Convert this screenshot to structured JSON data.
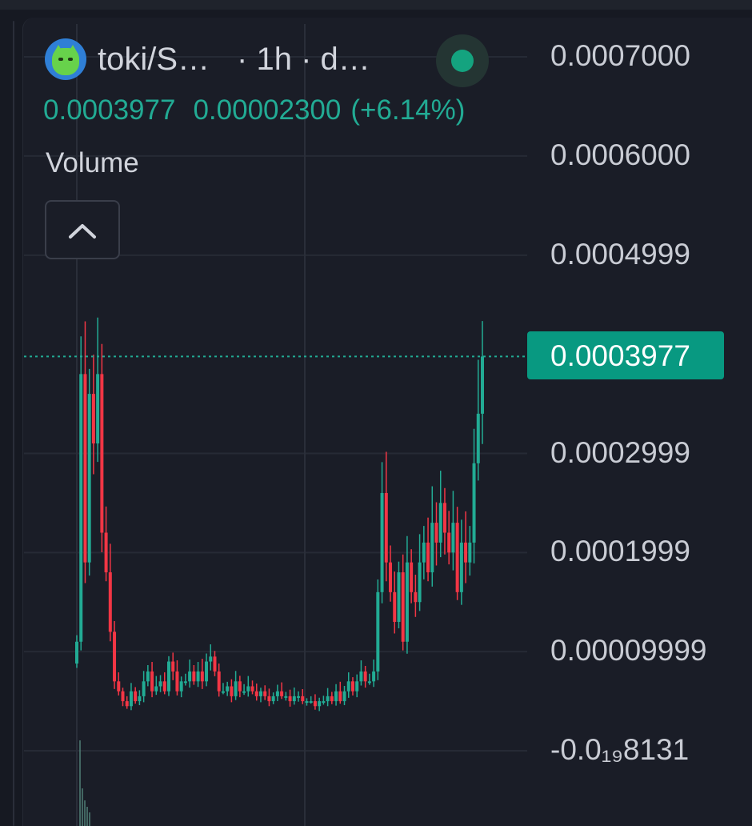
{
  "header": {
    "pair": "toki/S…",
    "interval": "· 1h · d…",
    "avatar_icon": "green-cat-token-icon",
    "status_color": "#14a37f"
  },
  "legend": {
    "close": "0.0003977",
    "change": "0.00002300",
    "change_pct": "(+6.14%)",
    "value_color": "#22ab94"
  },
  "volume_pane": {
    "label": "Volume",
    "collapse_icon": "chevron-up-icon"
  },
  "price_axis": {
    "labels": [
      "0.0007000",
      "0.0006000",
      "0.0004999",
      "0.0002999",
      "0.0001999",
      "0.00009999",
      "-0.0₁₉8131"
    ],
    "current_price": "0.0003977",
    "current_price_color": "#089981"
  },
  "colors": {
    "up": "#22ab94",
    "down": "#f23645",
    "background": "#1a1d27",
    "grid": "#262a35"
  },
  "chart_data": {
    "type": "candlestick",
    "symbol": "toki/S…",
    "interval": "1h",
    "ylim": [
      -1e-05,
      0.00072
    ],
    "grid": true,
    "y_ticks": [
      0.0007,
      0.0006,
      0.0004999,
      0.0002999,
      0.0001999,
      9.999e-05,
      0.0
    ],
    "last_price": 0.0003977,
    "change": 2.3e-05,
    "change_pct": 6.14,
    "close_series": [
      0.00011,
      0.00038,
      0.00019,
      0.00036,
      0.00031,
      0.00038,
      0.00022,
      0.00018,
      0.00012,
      7e-05,
      6e-05,
      5e-05,
      4.5e-05,
      6e-05,
      5e-05,
      5.5e-05,
      7e-05,
      8e-05,
      6e-05,
      6.5e-05,
      7e-05,
      6e-05,
      9e-05,
      8e-05,
      6e-05,
      7e-05,
      7e-05,
      8e-05,
      7e-05,
      8e-05,
      7e-05,
      9e-05,
      9.5e-05,
      8e-05,
      6e-05,
      6e-05,
      6.5e-05,
      5.5e-05,
      7e-05,
      6e-05,
      6e-05,
      6.5e-05,
      6e-05,
      5.5e-05,
      6e-05,
      5.5e-05,
      5e-05,
      5.5e-05,
      6e-05,
      5.5e-05,
      5.5e-05,
      5e-05,
      5.5e-05,
      5.5e-05,
      5e-05,
      5e-05,
      5e-05,
      4.5e-05,
      5e-05,
      5e-05,
      5.5e-05,
      5e-05,
      6e-05,
      5e-05,
      6e-05,
      7e-05,
      6e-05,
      7e-05,
      8e-05,
      7e-05,
      7e-05,
      8e-05,
      0.00016,
      0.00026,
      0.00019,
      0.00016,
      0.00013,
      0.00018,
      0.00011,
      0.00019,
      0.00016,
      0.00015,
      0.00019,
      0.00021,
      0.00018,
      0.00023,
      0.00021,
      0.00025,
      0.00022,
      0.0002,
      0.00023,
      0.00016,
      0.00021,
      0.00019,
      0.00021,
      0.00029,
      0.00034,
      0.0003977
    ]
  }
}
